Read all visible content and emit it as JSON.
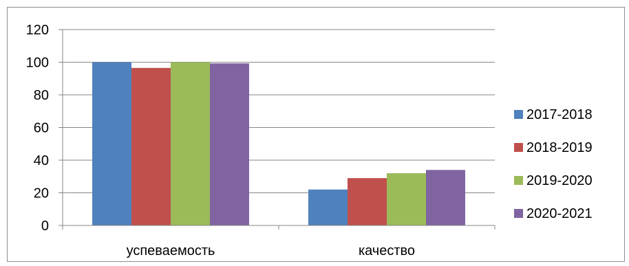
{
  "chart_data": {
    "type": "bar",
    "categories": [
      "успеваемость",
      "качество"
    ],
    "series": [
      {
        "name": "2017-2018",
        "color": "#4F81BD",
        "values": [
          100,
          22
        ]
      },
      {
        "name": "2018-2019",
        "color": "#C0504D",
        "values": [
          96.5,
          29
        ]
      },
      {
        "name": "2019-2020",
        "color": "#9BBB59",
        "values": [
          100,
          32
        ]
      },
      {
        "name": "2020-2021",
        "color": "#8064A2",
        "values": [
          99.3,
          34
        ]
      }
    ],
    "title": "",
    "xlabel": "",
    "ylabel": "",
    "ylim": [
      0,
      120
    ],
    "yticks": [
      "0",
      "20",
      "40",
      "60",
      "80",
      "100",
      "120"
    ],
    "grid": true,
    "legend_position": "right"
  }
}
